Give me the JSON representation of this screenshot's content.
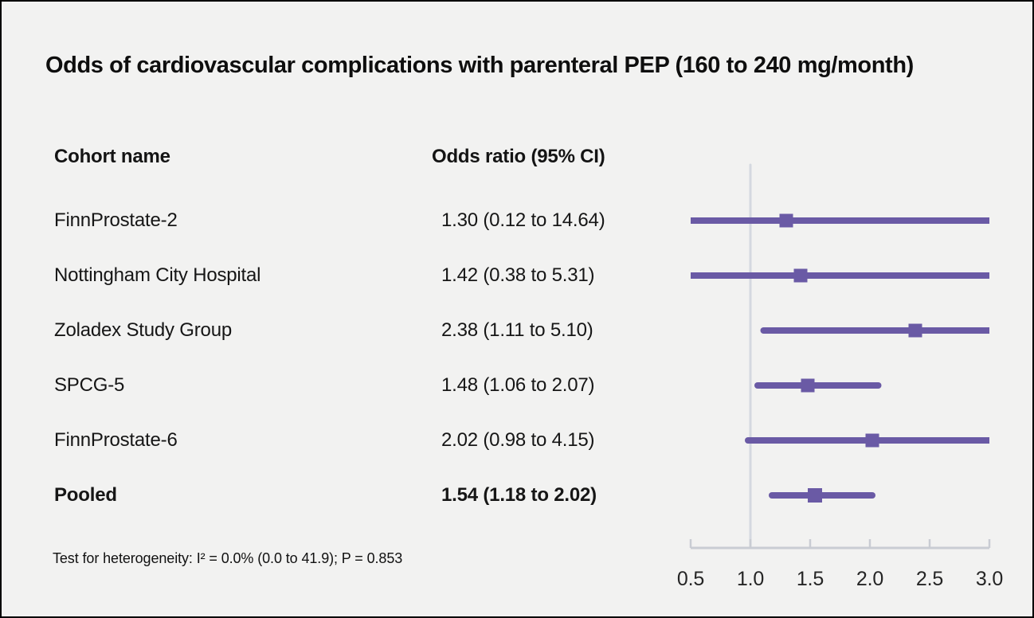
{
  "title": "Odds of cardiovascular complications with parenteral PEP (160 to 240 mg/month)",
  "table": {
    "cohort_header": "Cohort name",
    "or_header": "Odds ratio (95% CI)"
  },
  "footnote": "Test for heterogeneity: I² = 0.0% (0.0 to 41.9); P = 0.853",
  "colors": {
    "marker_purple": "#6a5aa5",
    "reference_line": "#d4d8e0",
    "axis_line": "#c9ccd3",
    "background": "#f2f2f1",
    "text": "#141414"
  },
  "chart_data": {
    "type": "forest",
    "title": "Odds of cardiovascular complications with parenteral PEP (160 to 240 mg/month)",
    "xlim": [
      0.5,
      3.0
    ],
    "x_ticks": [
      "0.5",
      "1.0",
      "1.5",
      "2.0",
      "2.5",
      "3.0"
    ],
    "x_tick_values": [
      0.5,
      1.0,
      1.5,
      2.0,
      2.5,
      3.0
    ],
    "reference_line_x": 1.0,
    "grid": false,
    "legend": "none",
    "rows": [
      {
        "label": "FinnProstate-2",
        "or": 1.3,
        "ci_low": 0.12,
        "ci_high": 14.64,
        "display": "1.30 (0.12 to 14.64)",
        "pooled": false
      },
      {
        "label": "Nottingham City Hospital",
        "or": 1.42,
        "ci_low": 0.38,
        "ci_high": 5.31,
        "display": "1.42 (0.38 to 5.31)",
        "pooled": false
      },
      {
        "label": "Zoladex Study Group",
        "or": 2.38,
        "ci_low": 1.11,
        "ci_high": 5.1,
        "display": "2.38 (1.11 to 5.10)",
        "pooled": false
      },
      {
        "label": "SPCG-5",
        "or": 1.48,
        "ci_low": 1.06,
        "ci_high": 2.07,
        "display": "1.48 (1.06 to 2.07)",
        "pooled": false
      },
      {
        "label": "FinnProstate-6",
        "or": 2.02,
        "ci_low": 0.98,
        "ci_high": 4.15,
        "display": "2.02 (0.98 to 4.15)",
        "pooled": false
      },
      {
        "label": "Pooled",
        "or": 1.54,
        "ci_low": 1.18,
        "ci_high": 2.02,
        "display": "1.54 (1.18 to 2.02)",
        "pooled": true
      }
    ]
  }
}
